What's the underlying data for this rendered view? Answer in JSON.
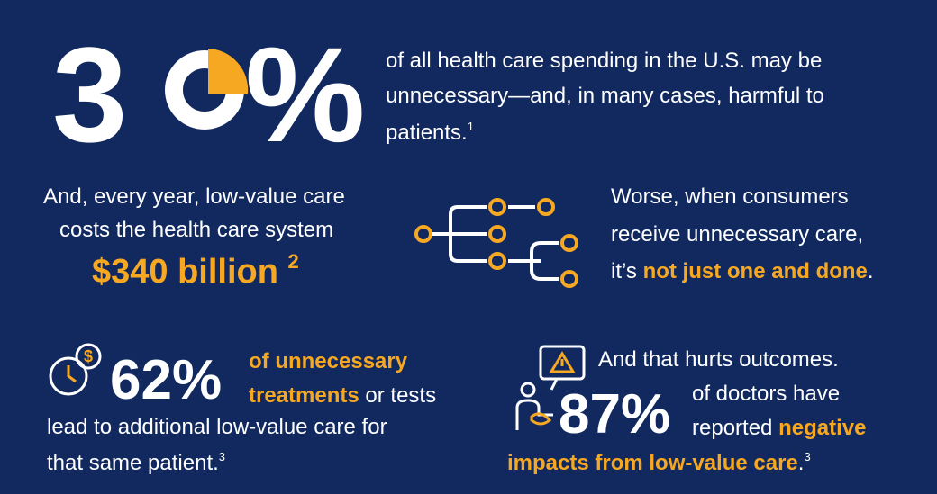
{
  "stat_spending": {
    "digit": "3",
    "percent": "%",
    "lines": [
      "of all health care spending in the U.S. may be",
      "unnecessary—and, in many cases, harmful to",
      "patients."
    ],
    "note": "1"
  },
  "stat_cost": {
    "lines": [
      "And, every year, low-value care",
      "costs the health care system"
    ],
    "amount": "$340 billion",
    "note": "2"
  },
  "cascade": {
    "lines": [
      "Worse, when consumers",
      "receive unnecessary care,"
    ],
    "lead": "it’s ",
    "emphasis": "not just one and done",
    "end": "."
  },
  "stat_followup": {
    "value": "62%",
    "emphasis_lines": [
      "of unnecessary",
      "treatments"
    ],
    "rest": " or tests",
    "lines": [
      "lead to additional low-value care for",
      "that same patient."
    ],
    "note": "3"
  },
  "stat_doctors": {
    "intro": "And that hurts outcomes.",
    "value": "87%",
    "lines": [
      "of doctors have",
      "reported "
    ],
    "emphasis_1": "negative",
    "emphasis_2": "impacts from low-value care",
    "end": ".",
    "note": "3"
  }
}
